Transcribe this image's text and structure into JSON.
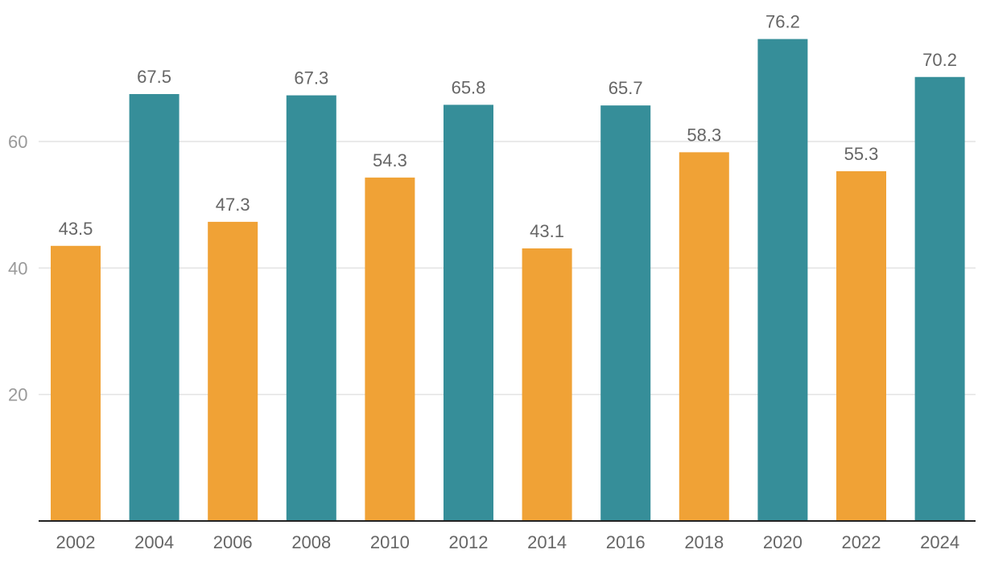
{
  "chart_data": {
    "type": "bar",
    "title": "",
    "xlabel": "",
    "ylabel": "",
    "categories": [
      "2002",
      "2004",
      "2006",
      "2008",
      "2010",
      "2012",
      "2014",
      "2016",
      "2018",
      "2020",
      "2022",
      "2024"
    ],
    "values": [
      43.5,
      67.5,
      47.3,
      67.3,
      54.3,
      65.8,
      43.1,
      65.7,
      58.3,
      76.2,
      55.3,
      70.2
    ],
    "value_labels": [
      "43.5",
      "67.5",
      "47.3",
      "67.3",
      "54.3",
      "65.8",
      "43.1",
      "65.7",
      "58.3",
      "76.2",
      "55.3",
      "70.2"
    ],
    "bar_color_keys": [
      "orange",
      "teal",
      "orange",
      "teal",
      "orange",
      "teal",
      "orange",
      "teal",
      "orange",
      "teal",
      "orange",
      "teal"
    ],
    "colors": {
      "orange": "#F0A236",
      "teal": "#368E99",
      "grid": "#e3e3e3",
      "axis": "#222222"
    },
    "ylim": [
      0,
      80
    ],
    "yticks": [
      20,
      40,
      60
    ],
    "ytick_labels": [
      "20",
      "40",
      "60"
    ],
    "grid": true,
    "legend": "none"
  }
}
